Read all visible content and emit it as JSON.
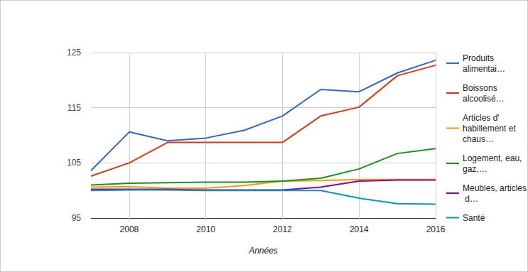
{
  "chart_data": {
    "type": "line",
    "x_label": "Années",
    "x": [
      2007,
      2008,
      2009,
      2010,
      2011,
      2012,
      2013,
      2014,
      2015,
      2016
    ],
    "series": [
      {
        "name": "Produits alimentai…",
        "color": "#3366cc",
        "values": [
          103.6,
          110.6,
          109.0,
          109.5,
          110.9,
          113.5,
          118.3,
          117.9,
          121.3,
          123.6
        ]
      },
      {
        "name": "Boissons alcoolisé…",
        "color": "#dc3912",
        "values": [
          102.6,
          105.0,
          108.7,
          108.7,
          108.7,
          108.7,
          113.5,
          115.1,
          120.8,
          122.7
        ]
      },
      {
        "name": "Articles d' habillement et chaus…",
        "color": "#ff9900",
        "values": [
          100.6,
          100.7,
          100.4,
          100.4,
          100.9,
          101.7,
          101.8,
          102.0,
          102.0,
          102.0
        ]
      },
      {
        "name": "Logement, eau, gaz,…",
        "color": "#109618",
        "values": [
          101.0,
          101.3,
          101.4,
          101.5,
          101.5,
          101.7,
          102.2,
          103.9,
          106.7,
          107.6
        ]
      },
      {
        "name": "Meubles, articles d…",
        "color": "#990099",
        "values": [
          100.2,
          100.2,
          100.2,
          100.1,
          100.1,
          100.1,
          100.6,
          101.7,
          101.9,
          101.9
        ]
      },
      {
        "name": "Santé",
        "color": "#0099c6",
        "values": [
          100.0,
          100.1,
          100.1,
          100.0,
          100.0,
          100.0,
          100.0,
          98.6,
          97.6,
          97.5
        ]
      }
    ],
    "xlim": [
      2007,
      2016
    ],
    "xticks": [
      2008,
      2010,
      2012,
      2014,
      2016
    ],
    "ylim": [
      95,
      125
    ],
    "yticks": [
      95,
      105,
      115,
      125
    ],
    "grid": true,
    "legend": "right"
  }
}
